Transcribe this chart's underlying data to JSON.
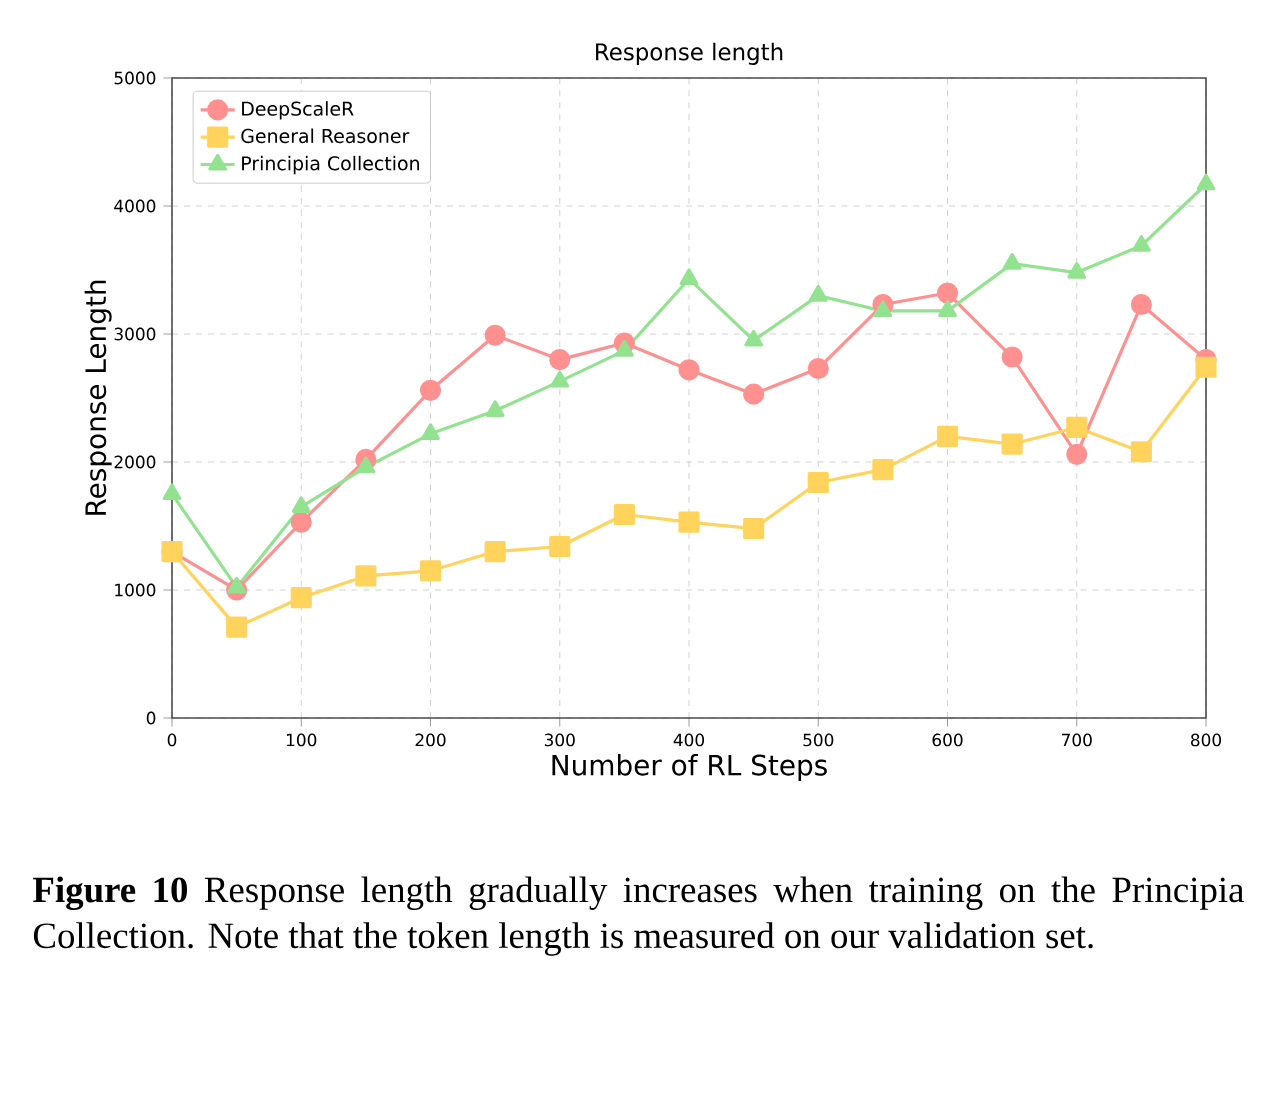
{
  "chart_data": {
    "type": "line",
    "title": "Response length",
    "xlabel": "Number of RL Steps",
    "ylabel": "Response Length",
    "x": [
      0,
      50,
      100,
      150,
      200,
      250,
      300,
      350,
      400,
      450,
      500,
      550,
      600,
      650,
      700,
      750,
      800
    ],
    "series": [
      {
        "name": "DeepScaleR",
        "color": "#ff9090",
        "marker": "circle",
        "values": [
          1300,
          1000,
          1530,
          2020,
          2560,
          2990,
          2800,
          2930,
          2720,
          2530,
          2730,
          3230,
          3320,
          2820,
          2060,
          3230,
          2800
        ]
      },
      {
        "name": "General Reasoner",
        "color": "#ffd35c",
        "marker": "square",
        "values": [
          1300,
          710,
          940,
          1110,
          1150,
          1300,
          1340,
          1590,
          1530,
          1480,
          1840,
          1940,
          2200,
          2140,
          2270,
          2080,
          2740
        ]
      },
      {
        "name": "Principia Collection",
        "color": "#92e290",
        "marker": "triangle",
        "values": [
          1750,
          1020,
          1650,
          1960,
          2220,
          2400,
          2630,
          2870,
          3430,
          2950,
          3300,
          3180,
          3180,
          3550,
          3480,
          3690,
          4170
        ]
      }
    ],
    "xlim": [
      0,
      800
    ],
    "ylim": [
      0,
      5000
    ],
    "xticks": [
      0,
      100,
      200,
      300,
      400,
      500,
      600,
      700,
      800
    ],
    "yticks": [
      0,
      1000,
      2000,
      3000,
      4000,
      5000
    ],
    "grid": true,
    "legend": "top left",
    "line_style": "solid",
    "annotations": [
      "**Figure 10** Response length gradually increases when training on the Principia Collection. Note that the token length is measured on our validation set."
    ]
  }
}
